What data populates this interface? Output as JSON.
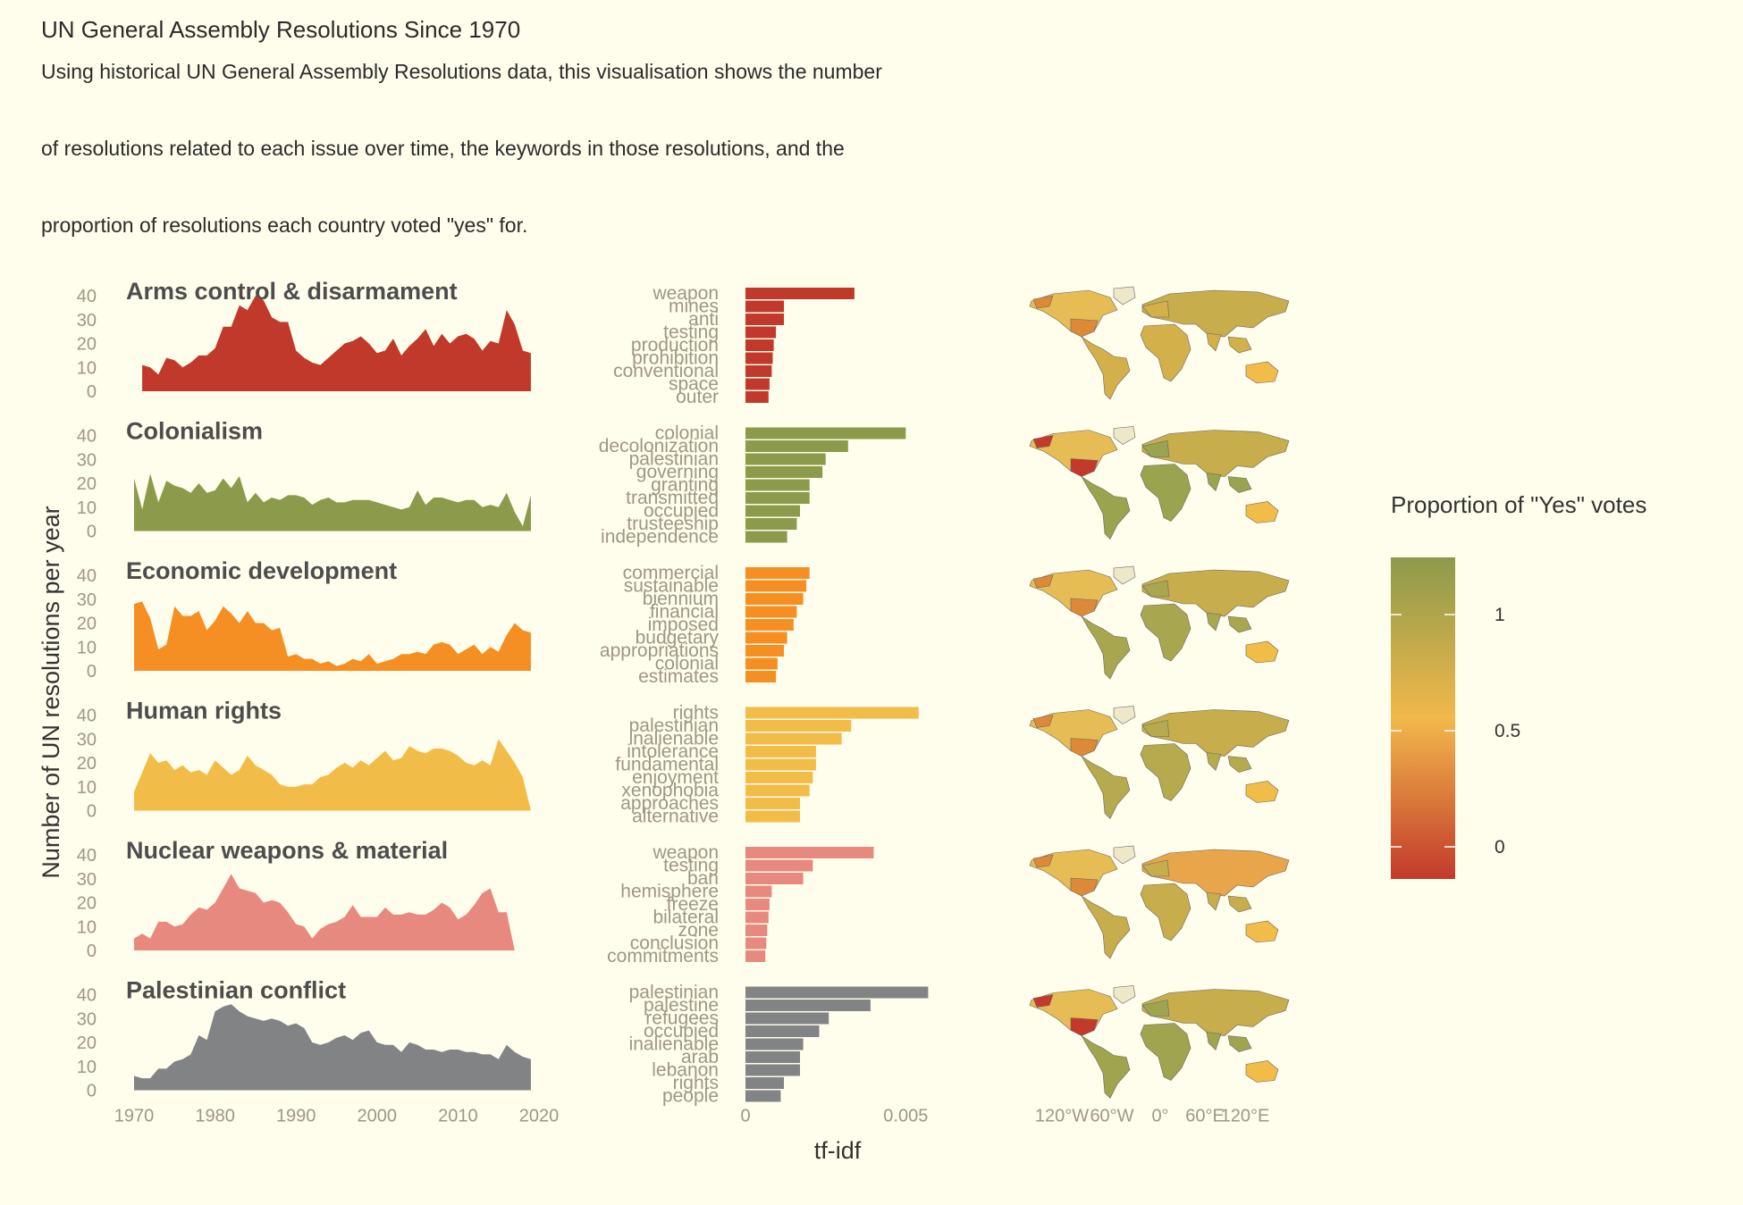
{
  "title": "UN General Assembly Resolutions Since 1970",
  "subtitle_lines": [
    "Using historical UN General Assembly Resolutions data, this visualisation shows the number",
    "of resolutions related to each issue over time, the keywords in those resolutions, and the",
    "proportion of resolutions each country voted \"yes\" for."
  ],
  "y_axis_title": "Number of UN resolutions per year",
  "x_axis_title_bars": "tf-idf",
  "legend": {
    "title": "Proportion of \"Yes\" votes",
    "tick_labels": [
      "1",
      "0.5",
      "0"
    ],
    "tick_values": [
      1,
      0.5,
      0
    ],
    "colors": [
      "#8c9a4b",
      "#f2b84b",
      "#c23a2b"
    ]
  },
  "map_tick_labels": [
    "120°W",
    "60°W",
    "0°",
    "60°E",
    "120°E"
  ],
  "chart_data": [
    {
      "type": "area",
      "title": "Arms control & disarmament",
      "color": "#c0392b",
      "x_range": [
        1970,
        2019
      ],
      "ylim": [
        0,
        45
      ],
      "y_ticks": [
        0,
        10,
        20,
        30,
        40
      ],
      "x_ticks": [
        1970,
        1980,
        1990,
        2000,
        2010,
        2020
      ],
      "x": [
        1971,
        1972,
        1973,
        1974,
        1975,
        1976,
        1977,
        1978,
        1979,
        1980,
        1981,
        1982,
        1983,
        1984,
        1985,
        1986,
        1987,
        1988,
        1989,
        1990,
        1991,
        1992,
        1993,
        1994,
        1995,
        1996,
        1997,
        1998,
        1999,
        2000,
        2001,
        2002,
        2003,
        2004,
        2005,
        2006,
        2007,
        2008,
        2009,
        2010,
        2011,
        2012,
        2013,
        2014,
        2015,
        2016,
        2017,
        2018,
        2019
      ],
      "y": [
        11,
        10,
        7,
        14,
        13,
        10,
        12,
        15,
        15,
        18,
        27,
        27,
        36,
        34,
        40,
        38,
        31,
        29,
        29,
        17,
        14,
        12,
        11,
        14,
        17,
        20,
        21,
        23,
        20,
        16,
        17,
        22,
        15,
        19,
        22,
        26,
        19,
        24,
        20,
        23,
        24,
        22,
        17,
        21,
        20,
        34,
        28,
        17,
        16
      ],
      "keywords": [
        "weapon",
        "mines",
        "anti",
        "testing",
        "production",
        "prohibition",
        "conventional",
        "space",
        "outer"
      ],
      "tfidf": [
        0.0034,
        0.0012,
        0.0012,
        0.00095,
        0.00088,
        0.00085,
        0.00082,
        0.00075,
        0.00072
      ],
      "tfidf_ticks": [
        "0",
        "0.005"
      ],
      "map_color": "#d4b04a"
    },
    {
      "type": "area",
      "title": "Colonialism",
      "color": "#8c9a4b",
      "x_range": [
        1970,
        2019
      ],
      "ylim": [
        0,
        45
      ],
      "y_ticks": [
        0,
        10,
        20,
        30,
        40
      ],
      "x": [
        1970,
        1971,
        1972,
        1973,
        1974,
        1975,
        1976,
        1977,
        1978,
        1979,
        1980,
        1981,
        1982,
        1983,
        1984,
        1985,
        1986,
        1987,
        1988,
        1989,
        1990,
        1991,
        1992,
        1993,
        1994,
        1995,
        1996,
        1997,
        1998,
        1999,
        2000,
        2001,
        2002,
        2003,
        2004,
        2005,
        2006,
        2007,
        2008,
        2009,
        2010,
        2011,
        2012,
        2013,
        2014,
        2015,
        2016,
        2017,
        2018,
        2019
      ],
      "y": [
        22,
        9,
        24,
        12,
        21,
        19,
        18,
        16,
        20,
        16,
        17,
        22,
        18,
        23,
        12,
        16,
        12,
        14,
        13,
        15,
        15,
        14,
        11,
        13,
        14,
        12,
        12,
        13,
        13,
        13,
        12,
        11,
        10,
        9,
        10,
        17,
        11,
        14,
        14,
        13,
        12,
        13,
        13,
        10,
        11,
        10,
        16,
        8,
        2,
        15
      ],
      "keywords": [
        "colonial",
        "decolonization",
        "palestinian",
        "governing",
        "granting",
        "transmitted",
        "occupied",
        "trusteeship",
        "independence"
      ],
      "tfidf": [
        0.005,
        0.0032,
        0.0025,
        0.0024,
        0.002,
        0.002,
        0.0017,
        0.0016,
        0.0013
      ],
      "map_color": "#9aa34e"
    },
    {
      "type": "area",
      "title": "Economic development",
      "color": "#f58f23",
      "x_range": [
        1970,
        2019
      ],
      "ylim": [
        0,
        45
      ],
      "y_ticks": [
        0,
        10,
        20,
        30,
        40
      ],
      "x": [
        1970,
        1971,
        1972,
        1973,
        1974,
        1975,
        1976,
        1977,
        1978,
        1979,
        1980,
        1981,
        1982,
        1983,
        1984,
        1985,
        1986,
        1987,
        1988,
        1989,
        1990,
        1991,
        1992,
        1993,
        1994,
        1995,
        1996,
        1997,
        1998,
        1999,
        2000,
        2001,
        2002,
        2003,
        2004,
        2005,
        2006,
        2007,
        2008,
        2009,
        2010,
        2011,
        2012,
        2013,
        2014,
        2015,
        2016,
        2017,
        2018,
        2019
      ],
      "y": [
        28,
        29,
        22,
        9,
        11,
        27,
        23,
        23,
        25,
        17,
        21,
        27,
        24,
        20,
        25,
        20,
        20,
        17,
        18,
        6,
        7,
        5,
        5,
        3,
        4,
        2,
        3,
        5,
        4,
        7,
        3,
        4,
        5,
        7,
        7,
        8,
        7,
        11,
        12,
        11,
        7,
        9,
        11,
        7,
        10,
        8,
        15,
        20,
        17,
        16
      ],
      "keywords": [
        "commercial",
        "sustainable",
        "biennium",
        "financial",
        "imposed",
        "budgetary",
        "appropriations",
        "colonial",
        "estimates"
      ],
      "tfidf": [
        0.002,
        0.0019,
        0.0018,
        0.0016,
        0.0015,
        0.0013,
        0.0012,
        0.001,
        0.00095
      ],
      "map_color": "#a9a650"
    },
    {
      "type": "area",
      "title": "Human rights",
      "color": "#f2bc48",
      "x_range": [
        1970,
        2019
      ],
      "ylim": [
        0,
        45
      ],
      "y_ticks": [
        0,
        10,
        20,
        30,
        40
      ],
      "x": [
        1970,
        1971,
        1972,
        1973,
        1974,
        1975,
        1976,
        1977,
        1978,
        1979,
        1980,
        1981,
        1982,
        1983,
        1984,
        1985,
        1986,
        1987,
        1988,
        1989,
        1990,
        1991,
        1992,
        1993,
        1994,
        1995,
        1996,
        1997,
        1998,
        1999,
        2000,
        2001,
        2002,
        2003,
        2004,
        2005,
        2006,
        2007,
        2008,
        2009,
        2010,
        2011,
        2012,
        2013,
        2014,
        2015,
        2016,
        2017,
        2018,
        2019
      ],
      "y": [
        8,
        16,
        24,
        20,
        21,
        17,
        19,
        16,
        17,
        15,
        21,
        18,
        15,
        17,
        23,
        19,
        17,
        15,
        11,
        10,
        10,
        11,
        11,
        14,
        15,
        18,
        20,
        18,
        21,
        19,
        22,
        25,
        21,
        22,
        27,
        25,
        24,
        26,
        26,
        25,
        23,
        20,
        19,
        21,
        19,
        30,
        25,
        20,
        14,
        0
      ],
      "keywords": [
        "rights",
        "palestinian",
        "inalienable",
        "intolerance",
        "fundamental",
        "enjoyment",
        "xenophobia",
        "approaches",
        "alternative"
      ],
      "tfidf": [
        0.0054,
        0.0033,
        0.003,
        0.0022,
        0.0022,
        0.0021,
        0.002,
        0.0017,
        0.0017
      ],
      "map_color": "#b5aa4e"
    },
    {
      "type": "area",
      "title": "Nuclear weapons & material",
      "color": "#e8897f",
      "x_range": [
        1970,
        2019
      ],
      "ylim": [
        0,
        45
      ],
      "y_ticks": [
        0,
        10,
        20,
        30,
        40
      ],
      "x": [
        1970,
        1971,
        1972,
        1973,
        1974,
        1975,
        1976,
        1977,
        1978,
        1979,
        1980,
        1981,
        1982,
        1983,
        1984,
        1985,
        1986,
        1987,
        1988,
        1989,
        1990,
        1991,
        1992,
        1993,
        1994,
        1995,
        1996,
        1997,
        1998,
        1999,
        2000,
        2001,
        2002,
        2003,
        2004,
        2005,
        2006,
        2007,
        2008,
        2009,
        2010,
        2011,
        2012,
        2013,
        2014,
        2015,
        2016,
        2017,
        2018,
        2019
      ],
      "y": [
        5,
        7,
        5,
        12,
        12,
        10,
        11,
        15,
        18,
        17,
        20,
        26,
        32,
        26,
        25,
        24,
        20,
        21,
        20,
        16,
        11,
        10,
        5,
        9,
        11,
        12,
        14,
        19,
        14,
        14,
        14,
        18,
        15,
        15,
        16,
        15,
        15,
        17,
        20,
        18,
        13,
        15,
        19,
        24,
        26,
        16,
        16,
        0,
        0,
        0
      ],
      "keywords": [
        "weapon",
        "testing",
        "ban",
        "hemisphere",
        "freeze",
        "bilateral",
        "zone",
        "conclusion",
        "commitments"
      ],
      "tfidf": [
        0.004,
        0.0021,
        0.0018,
        0.00082,
        0.00075,
        0.00072,
        0.00068,
        0.00065,
        0.00062
      ],
      "map_color": "#c7ad4c"
    },
    {
      "type": "area",
      "title": "Palestinian conflict",
      "color": "#818385",
      "x_range": [
        1970,
        2019
      ],
      "ylim": [
        0,
        45
      ],
      "y_ticks": [
        0,
        10,
        20,
        30,
        40
      ],
      "x_ticks": [
        1970,
        1980,
        1990,
        2000,
        2010,
        2020
      ],
      "x": [
        1970,
        1971,
        1972,
        1973,
        1974,
        1975,
        1976,
        1977,
        1978,
        1979,
        1980,
        1981,
        1982,
        1983,
        1984,
        1985,
        1986,
        1987,
        1988,
        1989,
        1990,
        1991,
        1992,
        1993,
        1994,
        1995,
        1996,
        1997,
        1998,
        1999,
        2000,
        2001,
        2002,
        2003,
        2004,
        2005,
        2006,
        2007,
        2008,
        2009,
        2010,
        2011,
        2012,
        2013,
        2014,
        2015,
        2016,
        2017,
        2018,
        2019
      ],
      "y": [
        6,
        5,
        5,
        9,
        9,
        12,
        13,
        15,
        23,
        21,
        33,
        35,
        36,
        33,
        31,
        30,
        29,
        30,
        29,
        27,
        28,
        26,
        20,
        19,
        20,
        22,
        23,
        21,
        24,
        25,
        20,
        19,
        19,
        16,
        20,
        19,
        17,
        17,
        16,
        17,
        17,
        16,
        16,
        15,
        15,
        13,
        19,
        16,
        14,
        13
      ],
      "keywords": [
        "palestinian",
        "palestine",
        "refugees",
        "occupied",
        "inalienable",
        "arab",
        "lebanon",
        "rights",
        "people"
      ],
      "tfidf": [
        0.0057,
        0.0039,
        0.0026,
        0.0023,
        0.0018,
        0.0017,
        0.0017,
        0.0012,
        0.0011
      ],
      "tfidf_ticks": [
        "0",
        "0.005"
      ],
      "map_color": "#a0a44e"
    }
  ]
}
